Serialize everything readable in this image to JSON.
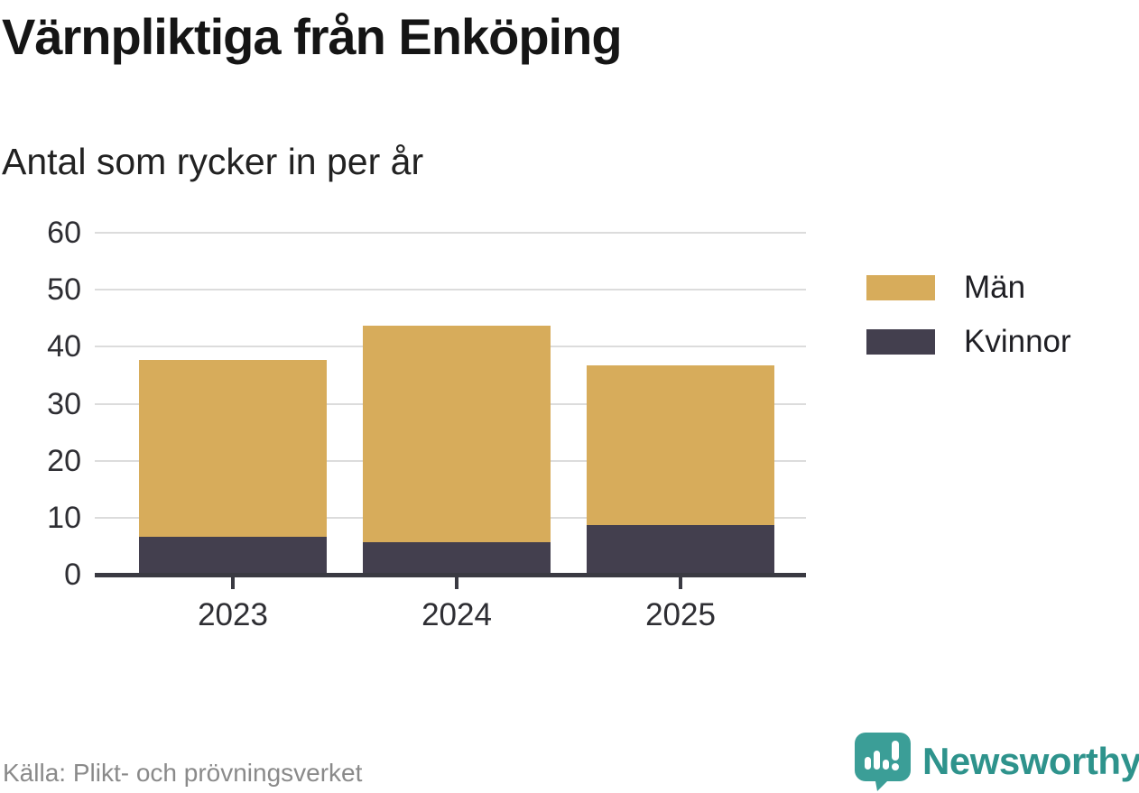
{
  "header": {
    "title": "Värnpliktiga från Enköping",
    "subtitle": "Antal som rycker in per år"
  },
  "footer": {
    "source": "Källa: Plikt- och prövningsverket",
    "brand_name": "Newsworthy",
    "brand_icon": "newsworthy-speech-bubble-bar-chart-icon"
  },
  "colors": {
    "man": "#d7ac5b",
    "kvinnor": "#433f4e",
    "axis": "#3a3a42",
    "gridline": "#dcdcdc",
    "tick_label": "#2e2e33",
    "source_text": "#8a8a8a",
    "brand_teal": "#2e938c",
    "title_text": "#151515"
  },
  "chart_data": {
    "type": "bar",
    "stacked": true,
    "title": "Värnpliktiga från Enköping",
    "subtitle": "Antal som rycker in per år",
    "categories": [
      "2023",
      "2024",
      "2025"
    ],
    "series": [
      {
        "name": "Kvinnor",
        "color": "#433f4e",
        "values": [
          7,
          6,
          9
        ]
      },
      {
        "name": "Män",
        "color": "#d7ac5b",
        "values": [
          31,
          38,
          28
        ]
      }
    ],
    "totals": [
      38,
      44,
      37
    ],
    "legend": [
      "Män",
      "Kvinnor"
    ],
    "legend_position": "right",
    "xlabel": "",
    "ylabel": "",
    "ylim": [
      0,
      60
    ],
    "yticks": [
      0,
      10,
      20,
      30,
      40,
      50,
      60
    ],
    "grid": true,
    "grid_axis": "y"
  }
}
